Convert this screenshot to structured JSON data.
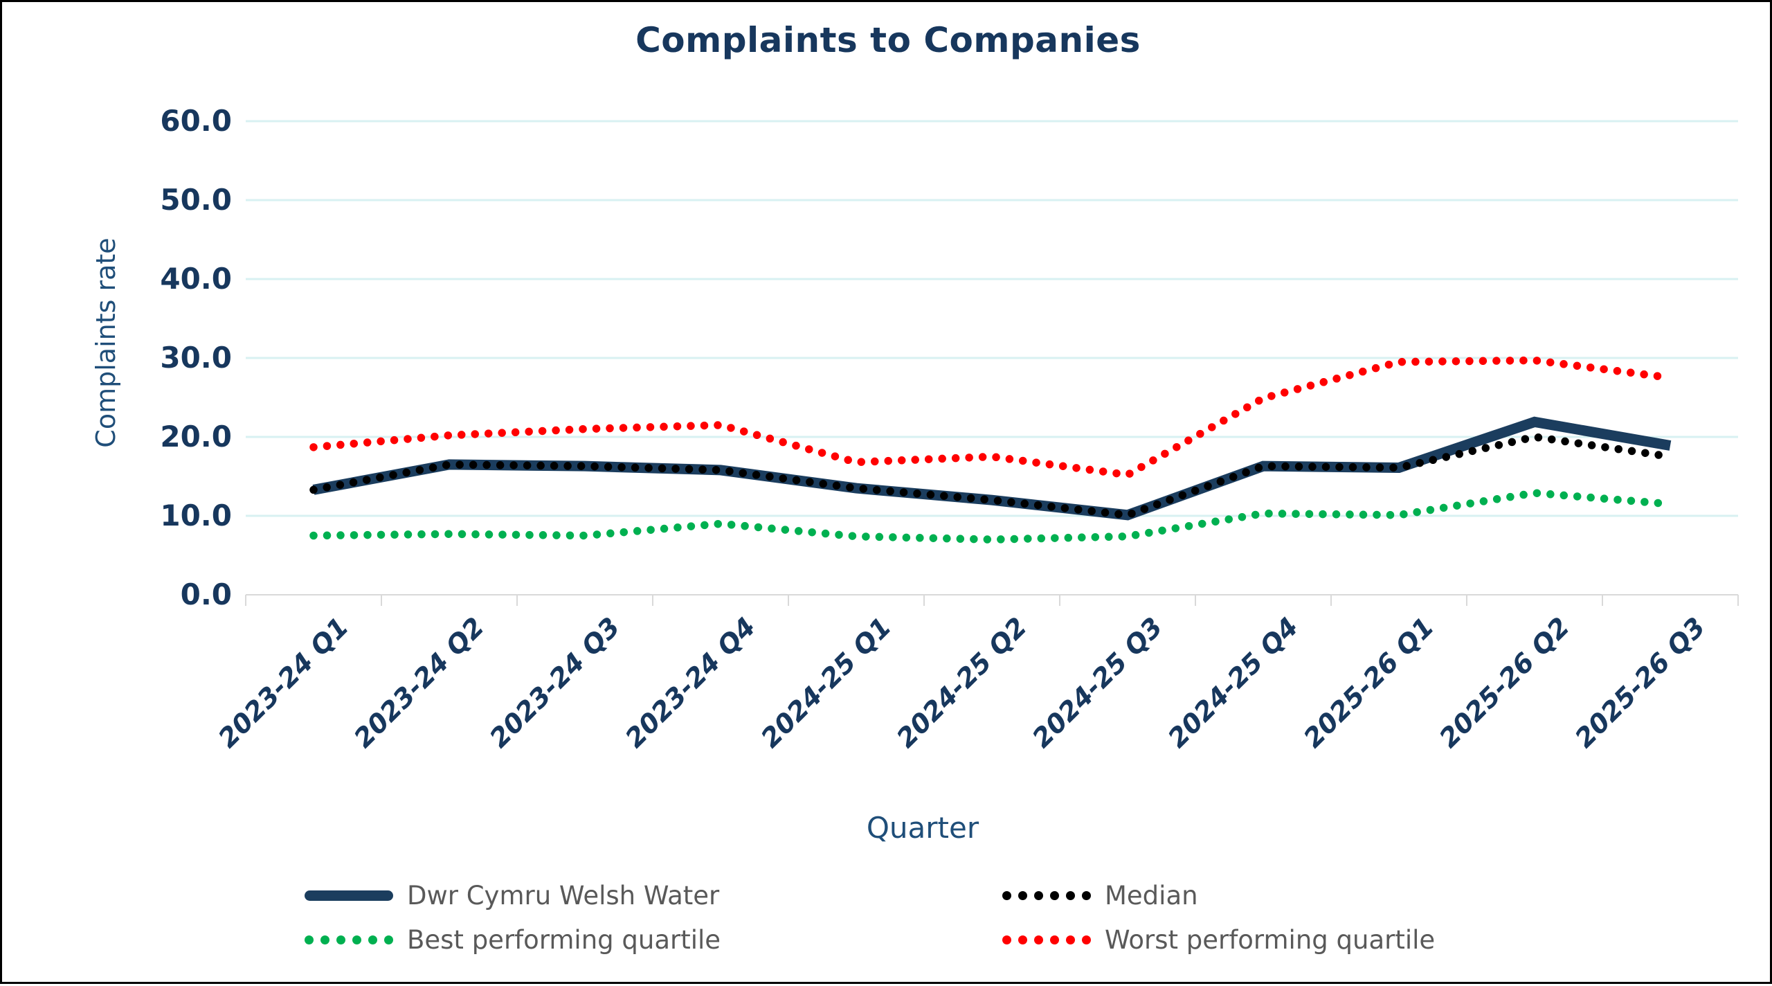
{
  "page_title": "Complaints to Companies",
  "chart_data": {
    "type": "line",
    "title": "Complaints to Companies",
    "xlabel": "Quarter",
    "ylabel": "Complaints rate",
    "ylim": [
      0,
      60
    ],
    "ytick_step": 10,
    "ytick_labels": [
      "0.0",
      "10.0",
      "20.0",
      "30.0",
      "40.0",
      "50.0",
      "60.0"
    ],
    "grid": "horizontal",
    "gridline_color": "#D8F1F2",
    "axis_line_color": "#D9D9D9",
    "legend_position": "bottom, two columns",
    "categories": [
      "2023-24 Q1",
      "2023-24 Q2",
      "2023-24 Q3",
      "2023-24 Q4",
      "2024-25 Q1",
      "2024-25 Q2",
      "2024-25 Q3",
      "2024-25 Q4",
      "2025-26 Q1",
      "2025-26 Q2",
      "2025-26 Q3"
    ],
    "series": [
      {
        "name": "Dwr Cymru Welsh Water",
        "style": "solid",
        "color": "#1B3D5E",
        "values": [
          13.3,
          16.5,
          16.3,
          15.8,
          13.5,
          12.0,
          10.1,
          16.3,
          16.1,
          21.9,
          18.9
        ]
      },
      {
        "name": "Median",
        "style": "dotted",
        "color": "#000000",
        "values": [
          13.3,
          16.5,
          16.3,
          15.8,
          13.5,
          12.0,
          10.1,
          16.3,
          16.1,
          20.0,
          17.5
        ]
      },
      {
        "name": "Best performing quartile",
        "style": "dotted",
        "color": "#00B050",
        "values": [
          7.5,
          7.7,
          7.5,
          9.0,
          7.4,
          7.0,
          7.4,
          10.3,
          10.1,
          12.9,
          11.5
        ]
      },
      {
        "name": "Worst performing quartile",
        "style": "dotted",
        "color": "#FF0000",
        "values": [
          18.7,
          20.2,
          21.0,
          21.5,
          16.8,
          17.5,
          15.2,
          24.9,
          29.5,
          29.7,
          27.5
        ]
      }
    ]
  },
  "text_colors": {
    "title": "#17375D",
    "tick_labels": "#17375D",
    "axis_titles": "#1F4E79",
    "legend_text": "#595959"
  }
}
